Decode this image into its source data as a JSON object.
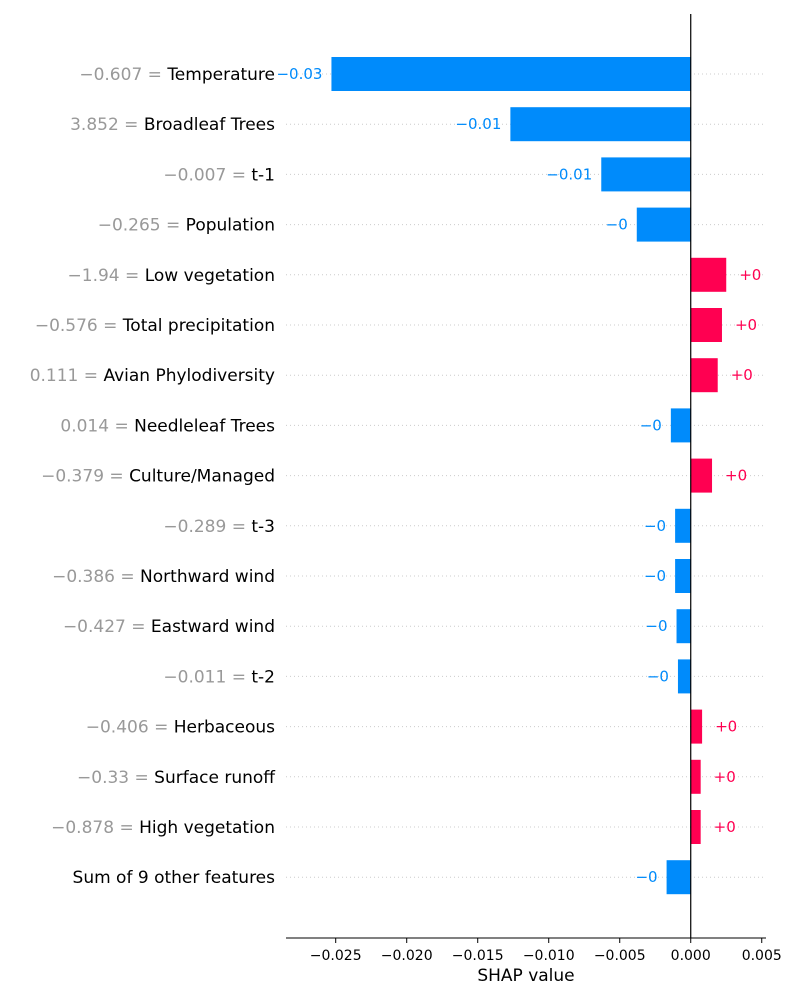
{
  "chart_data": {
    "type": "bar",
    "orientation": "horizontal",
    "xlabel": "SHAP value",
    "xlim": [
      -0.0285,
      0.0053
    ],
    "xticks": [
      -0.025,
      -0.02,
      -0.015,
      -0.01,
      -0.005,
      0.0,
      0.005
    ],
    "xtick_labels": [
      "−0.025",
      "−0.020",
      "−0.015",
      "−0.010",
      "−0.005",
      "0.000",
      "0.005"
    ],
    "grid": "horizontal dotted row guides",
    "colors": {
      "positive": "#ff0051",
      "negative": "#008bfb"
    },
    "rows": [
      {
        "value_text": "−0.607 =",
        "name": "Temperature",
        "shap": -0.0253,
        "label": "−0.03"
      },
      {
        "value_text": "3.852 =",
        "name": "Broadleaf Trees",
        "shap": -0.0127,
        "label": "−0.01"
      },
      {
        "value_text": "−0.007 =",
        "name": "t-1",
        "shap": -0.0063,
        "label": "−0.01"
      },
      {
        "value_text": "−0.265 =",
        "name": "Population",
        "shap": -0.0038,
        "label": "−0"
      },
      {
        "value_text": "−1.94 =",
        "name": "Low vegetation",
        "shap": 0.0025,
        "label": "+0"
      },
      {
        "value_text": "−0.576 =",
        "name": "Total precipitation",
        "shap": 0.0022,
        "label": "+0"
      },
      {
        "value_text": "0.111 =",
        "name": "Avian Phylodiversity",
        "shap": 0.0019,
        "label": "+0"
      },
      {
        "value_text": "0.014 =",
        "name": "Needleleaf Trees",
        "shap": -0.0014,
        "label": "−0"
      },
      {
        "value_text": "−0.379 =",
        "name": "Culture/Managed",
        "shap": 0.0015,
        "label": "+0"
      },
      {
        "value_text": "−0.289 =",
        "name": "t-3",
        "shap": -0.0011,
        "label": "−0"
      },
      {
        "value_text": "−0.386 =",
        "name": "Northward wind",
        "shap": -0.0011,
        "label": "−0"
      },
      {
        "value_text": "−0.427 =",
        "name": "Eastward wind",
        "shap": -0.001,
        "label": "−0"
      },
      {
        "value_text": "−0.011 =",
        "name": "t-2",
        "shap": -0.0009,
        "label": "−0"
      },
      {
        "value_text": "−0.406 =",
        "name": "Herbaceous",
        "shap": 0.0008,
        "label": "+0"
      },
      {
        "value_text": "−0.33 =",
        "name": "Surface runoff",
        "shap": 0.0007,
        "label": "+0"
      },
      {
        "value_text": "−0.878 =",
        "name": "High vegetation",
        "shap": 0.0007,
        "label": "+0"
      },
      {
        "value_text": "",
        "name": "Sum of 9 other features",
        "shap": -0.0017,
        "label": "−0"
      }
    ]
  }
}
